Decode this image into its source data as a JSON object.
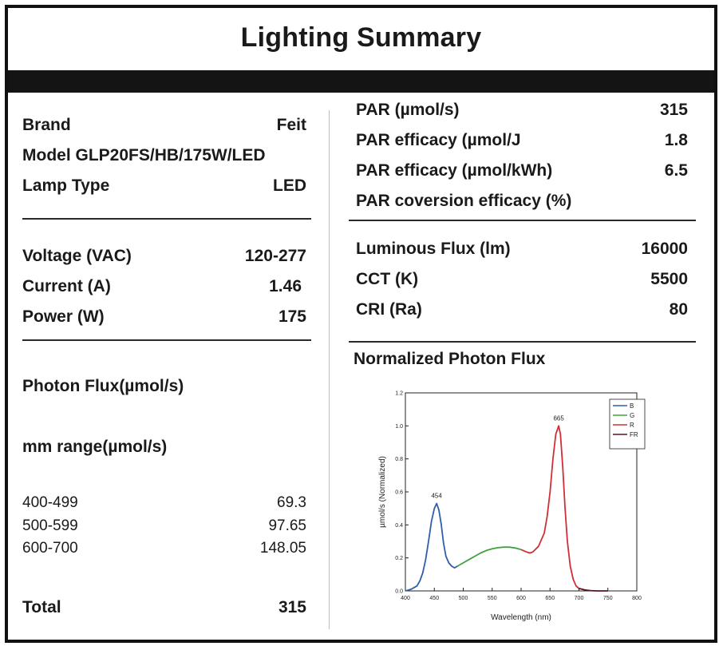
{
  "title": "Lighting Summary",
  "left": {
    "brand": {
      "label": "Brand",
      "value": "Feit"
    },
    "model": {
      "label": "Model GLP20FS/HB/175W/LED"
    },
    "lamp_type": {
      "label": "Lamp Type",
      "value": "LED"
    },
    "voltage": {
      "label": "Voltage (VAC)",
      "value": "120-277"
    },
    "current": {
      "label": "Current (A)",
      "value": "1.46"
    },
    "power": {
      "label": "Power (W)",
      "value": "175"
    },
    "photon_flux_heading": "Photon Flux(µmol/s)",
    "range_heading": "mm range(µmol/s)",
    "ranges": [
      {
        "range": "400-499",
        "value": "69.3"
      },
      {
        "range": "500-599",
        "value": "97.65"
      },
      {
        "range": "600-700",
        "value": "148.05"
      }
    ],
    "total": {
      "label": "Total",
      "value": "315"
    }
  },
  "right": {
    "par": {
      "label": "PAR (µmol/s)",
      "value": "315"
    },
    "par_eff_j": {
      "label": "PAR efficacy (µmol/J",
      "value": "1.8"
    },
    "par_eff_kwh": {
      "label": "PAR efficacy (µmol/kWh)",
      "value": "6.5"
    },
    "par_conv": {
      "label": "PAR coversion efficacy (%)"
    },
    "lum_flux": {
      "label": "Luminous Flux (lm)",
      "value": "16000"
    },
    "cct": {
      "label": "CCT  (K)",
      "value": "5500"
    },
    "cri": {
      "label": "CRI (Ra)",
      "value": "80"
    },
    "chart_heading": "Normalized Photon Flux"
  },
  "chart_data": {
    "type": "line",
    "xlabel": "Wavelength (nm)",
    "ylabel": "µmol/s (Normalized)",
    "xlim": [
      400,
      800
    ],
    "ylim": [
      0.0,
      1.2
    ],
    "xticks": [
      "400",
      "450",
      "500",
      "550",
      "600",
      "650",
      "700",
      "750",
      "800"
    ],
    "yticks": [
      "0.0",
      "0.2",
      "0.4",
      "0.6",
      "0.8",
      "1.0",
      "1.2"
    ],
    "annotations": [
      {
        "text": "454",
        "x": 454,
        "y": 0.53
      },
      {
        "text": "665",
        "x": 665,
        "y": 1.0
      }
    ],
    "legend_position": "top-right",
    "series": [
      {
        "name": "B",
        "color": "#2f5fa8",
        "x": [
          400,
          410,
          420,
          425,
          430,
          435,
          440,
          445,
          450,
          454,
          458,
          462,
          466,
          470,
          475,
          480,
          485,
          490
        ],
        "y": [
          0.0,
          0.01,
          0.03,
          0.06,
          0.11,
          0.19,
          0.3,
          0.42,
          0.5,
          0.53,
          0.49,
          0.4,
          0.29,
          0.21,
          0.17,
          0.15,
          0.14,
          0.15
        ]
      },
      {
        "name": "G",
        "color": "#3ea33e",
        "x": [
          490,
          500,
          510,
          520,
          530,
          540,
          550,
          560,
          570,
          580,
          590,
          600
        ],
        "y": [
          0.15,
          0.17,
          0.19,
          0.21,
          0.23,
          0.245,
          0.255,
          0.262,
          0.265,
          0.265,
          0.26,
          0.25
        ]
      },
      {
        "name": "R",
        "color": "#d03035",
        "x": [
          600,
          610,
          615,
          620,
          630,
          640,
          645,
          650,
          655,
          660,
          665,
          668,
          672,
          676,
          680,
          685,
          690,
          695,
          700
        ],
        "y": [
          0.25,
          0.235,
          0.23,
          0.235,
          0.27,
          0.35,
          0.45,
          0.6,
          0.8,
          0.95,
          1.0,
          0.95,
          0.75,
          0.5,
          0.3,
          0.15,
          0.07,
          0.03,
          0.015
        ]
      },
      {
        "name": "FR",
        "color": "#5a1020",
        "x": [
          700,
          710,
          720,
          730,
          740,
          750
        ],
        "y": [
          0.015,
          0.006,
          0.002,
          0.0,
          0.0,
          0.0
        ]
      }
    ]
  }
}
